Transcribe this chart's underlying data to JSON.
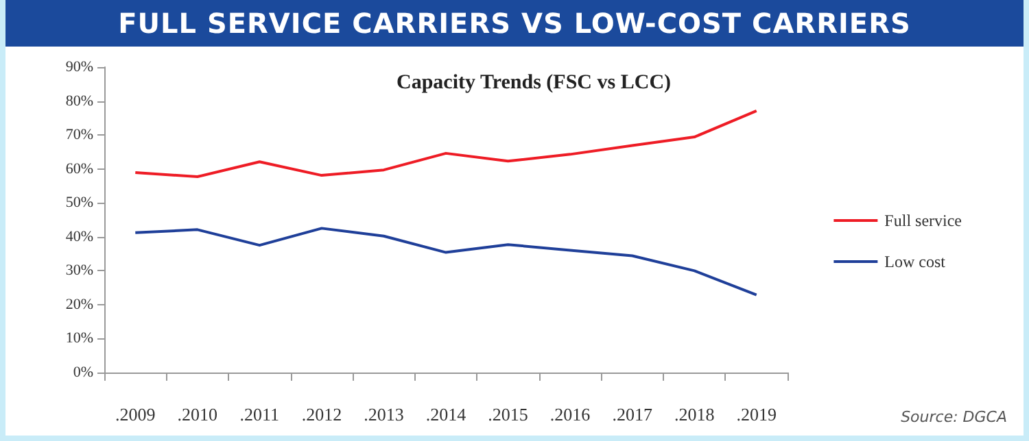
{
  "chart_data": {
    "type": "line",
    "title": "FULL SERVICE CARRIERS VS LOW-COST CARRIERS",
    "subtitle": "Capacity Trends (FSC vs LCC)",
    "categories": [
      ".2009",
      ".2010",
      ".2011",
      ".2012",
      ".2013",
      ".2014",
      ".2015",
      ".2016",
      ".2017",
      ".2018",
      ".2019"
    ],
    "series": [
      {
        "name": "Full service",
        "color": "#ee1c25",
        "values": [
          58.9,
          57.7,
          62.1,
          58.1,
          59.7,
          64.6,
          62.3,
          64.3,
          66.9,
          69.4,
          77.1
        ]
      },
      {
        "name": "Low cost",
        "color": "#1f3f99",
        "values": [
          41.2,
          42.1,
          37.5,
          42.5,
          40.2,
          35.4,
          37.7,
          36.0,
          34.4,
          30.0,
          22.9
        ]
      }
    ],
    "ylim": [
      0,
      90
    ],
    "yticks": [
      {
        "value": 0,
        "label": "0%"
      },
      {
        "value": 10,
        "label": "10%"
      },
      {
        "value": 20,
        "label": "20%"
      },
      {
        "value": 30,
        "label": "30%"
      },
      {
        "value": 40,
        "label": "40%"
      },
      {
        "value": 50,
        "label": "50%"
      },
      {
        "value": 60,
        "label": "60%"
      },
      {
        "value": 70,
        "label": "70%"
      },
      {
        "value": 80,
        "label": "80%"
      },
      {
        "value": 90,
        "label": "90%"
      }
    ],
    "grid": false,
    "legend": "right",
    "marker": "none",
    "line_style": "solid",
    "annotations": [
      "Source: DGCA"
    ]
  }
}
